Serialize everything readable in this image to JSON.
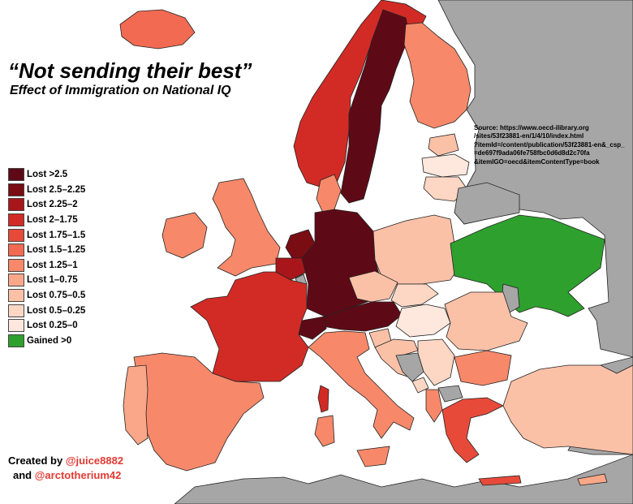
{
  "title": "“Not sending their best”",
  "subtitle": "Effect of Immigration on National IQ",
  "source": {
    "label": "Source:",
    "lines": [
      "https://www.oecd-ilibrary.org",
      "/sites/53f23881-en/1/4/10/index.html",
      "?itemId=/content/publication/53f23881-en&_csp_",
      "=de697f9ada06fe758fbc0d6d8d2c70fa",
      "&itemIGO=oecd&itemContentType=book"
    ]
  },
  "legend": [
    {
      "label": "Lost >2.5",
      "color": "#5e0a16"
    },
    {
      "label": "Lost 2.5–2.25",
      "color": "#7a0c14"
    },
    {
      "label": "Lost 2.25–2",
      "color": "#a8161b"
    },
    {
      "label": "Lost 2–1.75",
      "color": "#d22b26"
    },
    {
      "label": "Lost 1.75–1.5",
      "color": "#e84a39"
    },
    {
      "label": "Lost 1.5–1.25",
      "color": "#f26a52"
    },
    {
      "label": "Lost 1.25–1",
      "color": "#f7896a"
    },
    {
      "label": "Lost 1–0.75",
      "color": "#f9a788"
    },
    {
      "label": "Lost 0.75–0.5",
      "color": "#fbc1a7"
    },
    {
      "label": "Lost 0.5–0.25",
      "color": "#fdd6c4"
    },
    {
      "label": "Lost 0.25–0",
      "color": "#fee7dc"
    },
    {
      "label": "Gained >0",
      "color": "#2ea02e"
    }
  ],
  "colors": {
    "no_data": "#a6a6a6",
    "sea": "#ffffff",
    "handle": "#e23a32"
  },
  "credits": {
    "prefix": "Created by",
    "handle1": "@juice8882",
    "joiner": "and",
    "handle2": "@arctotherium42"
  }
}
